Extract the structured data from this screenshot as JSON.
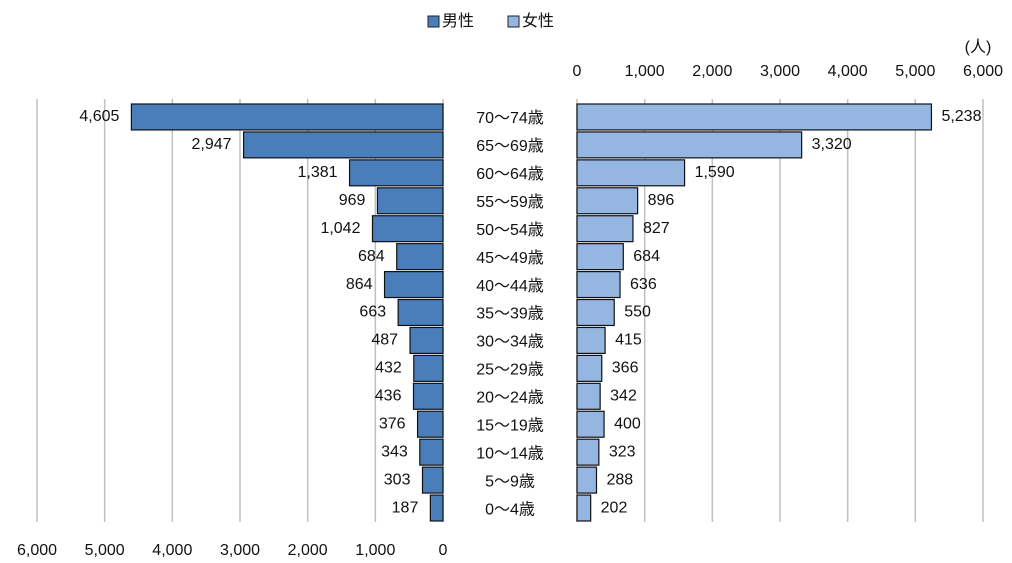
{
  "chart_data": {
    "type": "pyramid",
    "unit": "(人)",
    "categories": [
      "70〜74歳",
      "65〜69歳",
      "60〜64歳",
      "55〜59歳",
      "50〜54歳",
      "45〜49歳",
      "40〜44歳",
      "35〜39歳",
      "30〜34歳",
      "25〜29歳",
      "20〜24歳",
      "15〜19歳",
      "10〜14歳",
      "5〜9歳",
      "0〜4歳"
    ],
    "series": [
      {
        "name": "男性",
        "color": "#4a7ebb",
        "side": "left",
        "values": [
          4605,
          2947,
          1381,
          969,
          1042,
          684,
          864,
          663,
          487,
          432,
          436,
          376,
          343,
          303,
          187
        ],
        "value_labels": [
          "4,605",
          "2,947",
          "1,381",
          "969",
          "1,042",
          "684",
          "864",
          "663",
          "487",
          "432",
          "436",
          "376",
          "343",
          "303",
          "187"
        ]
      },
      {
        "name": "女性",
        "color": "#95b6e0",
        "side": "right",
        "values": [
          5238,
          3320,
          1590,
          896,
          827,
          684,
          636,
          550,
          415,
          366,
          342,
          400,
          323,
          288,
          202
        ],
        "value_labels": [
          "5,238",
          "3,320",
          "1,590",
          "896",
          "827",
          "684",
          "636",
          "550",
          "415",
          "366",
          "342",
          "400",
          "323",
          "288",
          "202"
        ]
      }
    ],
    "xlim": [
      0,
      6000
    ],
    "xticks": [
      0,
      {
        "value": 1000,
        "label": "1,000"
      },
      {
        "value": 2000,
        "label": "2,000"
      },
      {
        "value": 3000,
        "label": "3,000"
      },
      {
        "value": 4000,
        "label": "4,000"
      },
      {
        "value": 5000,
        "label": "5,000"
      },
      {
        "value": 6000,
        "label": "6,000"
      }
    ],
    "grid": true,
    "legend": "top"
  }
}
